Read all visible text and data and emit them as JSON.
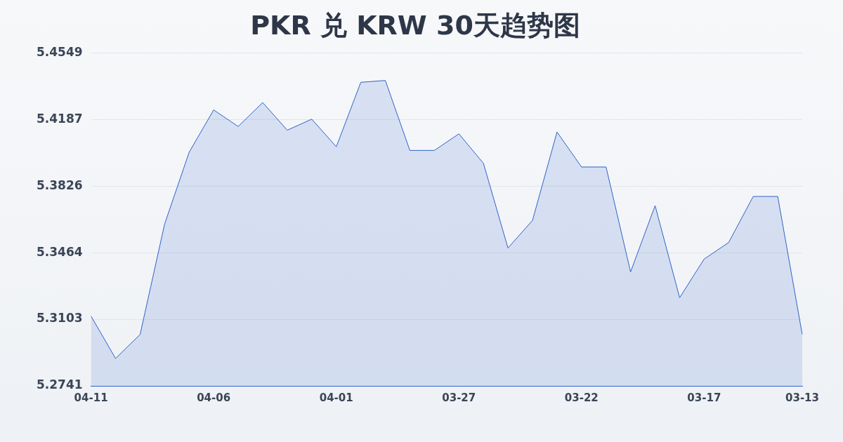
{
  "chart_data": {
    "type": "area",
    "title": "PKR 兑 KRW 30天趋势图",
    "categories": [
      "04-11",
      null,
      null,
      null,
      null,
      "04-06",
      null,
      null,
      null,
      null,
      "04-01",
      null,
      null,
      null,
      null,
      "03-27",
      null,
      null,
      null,
      null,
      "03-22",
      null,
      null,
      null,
      null,
      "03-17",
      null,
      null,
      null,
      "03-13"
    ],
    "series": [
      {
        "color": "#2f62c9",
        "values": [
          5.312,
          5.289,
          5.302,
          5.362,
          5.401,
          5.424,
          5.415,
          5.428,
          5.413,
          5.419,
          5.404,
          5.439,
          5.44,
          5.402,
          5.402,
          5.411,
          5.395,
          5.349,
          5.364,
          5.412,
          5.393,
          5.393,
          5.336,
          5.372,
          5.322,
          5.343,
          5.352,
          5.377,
          5.377,
          5.302
        ]
      }
    ],
    "ylim": [
      5.2741,
      5.4549
    ],
    "yticks": [
      5.2741,
      5.3103,
      5.3464,
      5.3826,
      5.4187,
      5.4549
    ],
    "grid": "y",
    "legend": false,
    "marker": "none",
    "line_style": "solid"
  }
}
